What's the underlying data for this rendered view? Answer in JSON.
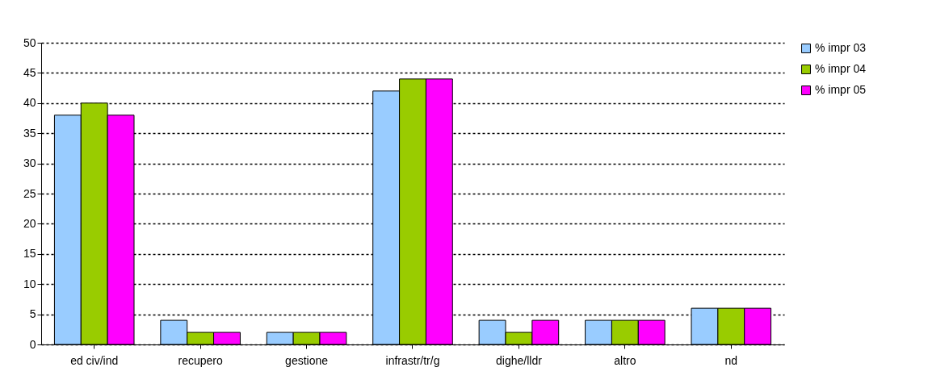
{
  "chart_data": {
    "type": "bar",
    "categories": [
      "ed civ/ind",
      "recupero",
      "gestione",
      "infrastr/tr/g",
      "dighe/lldr",
      "altro",
      "nd"
    ],
    "series": [
      {
        "name": "% impr 03",
        "color": "#99ccff",
        "values": [
          38,
          4,
          2,
          42,
          4,
          4,
          6
        ]
      },
      {
        "name": "% impr 04",
        "color": "#99cc00",
        "values": [
          40,
          2,
          2,
          44,
          2,
          4,
          6
        ]
      },
      {
        "name": "% impr 05",
        "color": "#ff00ff",
        "values": [
          38,
          2,
          2,
          44,
          4,
          4,
          6
        ]
      }
    ],
    "ylim": [
      0,
      50
    ],
    "yticks": [
      0,
      5,
      10,
      15,
      20,
      25,
      30,
      35,
      40,
      45,
      50
    ],
    "grid": "y",
    "legend": "right"
  }
}
